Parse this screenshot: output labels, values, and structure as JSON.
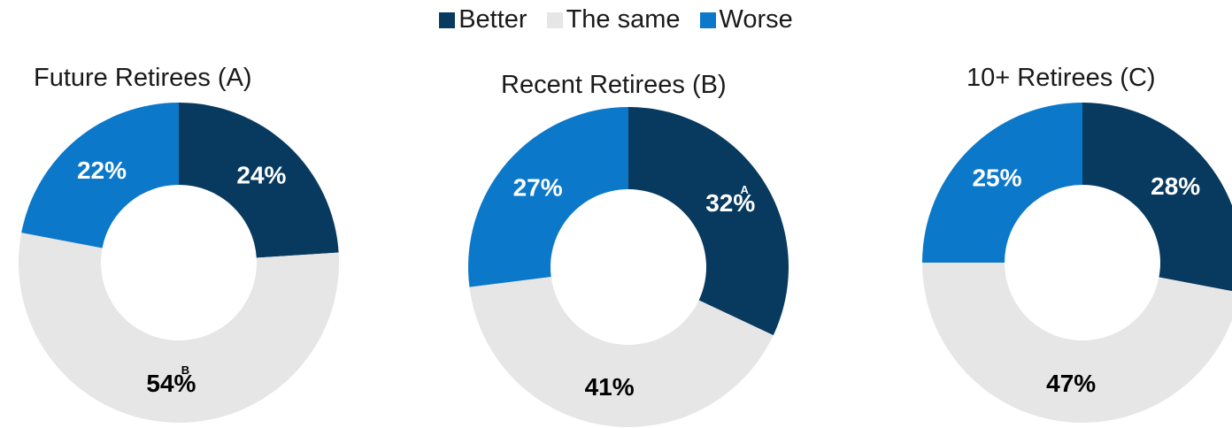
{
  "legend": [
    {
      "label": "Better",
      "color": "#083a5f"
    },
    {
      "label": "The same",
      "color": "#e6e6e6"
    },
    {
      "label": "Worse",
      "color": "#0b78c9"
    }
  ],
  "chart_data": [
    {
      "type": "pie",
      "title": "Future Retirees (A)",
      "categories": [
        "Better",
        "The same",
        "Worse"
      ],
      "values": [
        24,
        54,
        22
      ],
      "labels": [
        "24%",
        "54%",
        "22%"
      ],
      "significance": [
        "",
        "B",
        ""
      ]
    },
    {
      "type": "pie",
      "title": "Recent Retirees (B)",
      "categories": [
        "Better",
        "The same",
        "Worse"
      ],
      "values": [
        32,
        41,
        27
      ],
      "labels": [
        "32%",
        "41%",
        "27%"
      ],
      "significance": [
        "A",
        "",
        ""
      ]
    },
    {
      "type": "pie",
      "title": "10+ Retirees (C)",
      "categories": [
        "Better",
        "The same",
        "Worse"
      ],
      "values": [
        28,
        47,
        25
      ],
      "labels": [
        "28%",
        "47%",
        "25%"
      ],
      "significance": [
        "",
        "",
        ""
      ]
    }
  ]
}
